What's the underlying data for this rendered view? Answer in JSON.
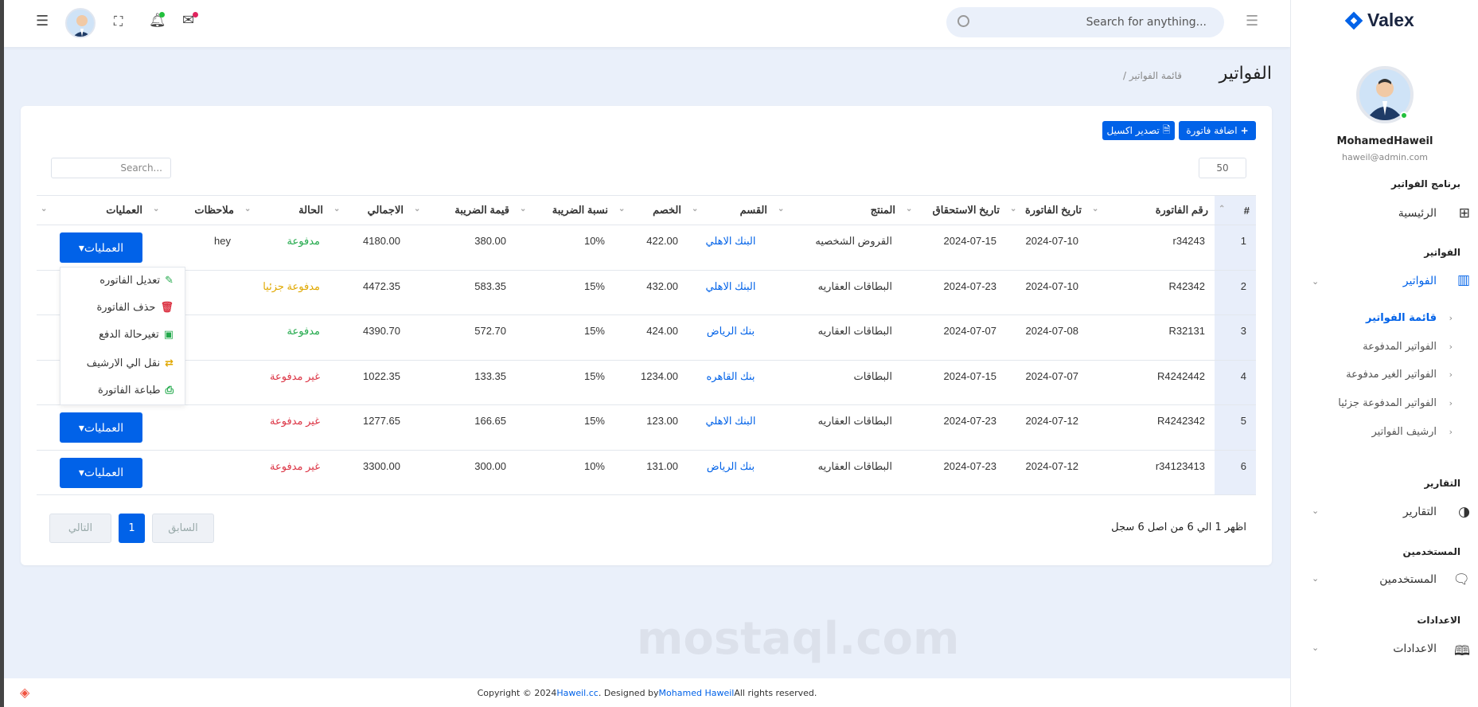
{
  "header": {
    "search_placeholder": "Search for anything...",
    "icons": [
      "menu-icon",
      "avatar",
      "fullscreen-icon",
      "bell-icon",
      "mail-icon",
      "hamburger-icon"
    ]
  },
  "page": {
    "title": "الفواتير",
    "breadcrumb": "/ قائمة الفواتير"
  },
  "toolbar": {
    "add_label": "اضافة فاتورة",
    "export_label": "تصدير اكسيل",
    "page_size": "50",
    "search_placeholder": "Search..."
  },
  "table": {
    "columns": [
      "#",
      "رقم الفاتورة",
      "تاريخ الفاتورة",
      "تاريخ الاستحقاق",
      "المنتج",
      "القسم",
      "الخصم",
      "نسبة الضريبة",
      "قيمة الضريبة",
      "الاجمالي",
      "الحالة",
      "ملاحظات",
      "العمليات"
    ],
    "ops_label": "العمليات▾",
    "rows": [
      {
        "n": "1",
        "no": "r34243",
        "date": "2024-07-10",
        "due": "2024-07-15",
        "product": "القروض الشخصيه",
        "section": "البنك الاهلي",
        "discount": "422.00",
        "rate": "10%",
        "tax": "380.00",
        "total": "4180.00",
        "status": "مدفوعة",
        "status_color": "#22a94b",
        "notes": "hey"
      },
      {
        "n": "2",
        "no": "R42342",
        "date": "2024-07-10",
        "due": "2024-07-23",
        "product": "البطاقات العقاريه",
        "section": "البنك الاهلي",
        "discount": "432.00",
        "rate": "15%",
        "tax": "583.35",
        "total": "4472.35",
        "status": "مدفوعة جزئيا",
        "status_color": "#e0a800",
        "notes": ""
      },
      {
        "n": "3",
        "no": "R32131",
        "date": "2024-07-08",
        "due": "2024-07-07",
        "product": "البطاقات العقاريه",
        "section": "بنك الرياض",
        "discount": "424.00",
        "rate": "15%",
        "tax": "572.70",
        "total": "4390.70",
        "status": "مدفوعة",
        "status_color": "#22a94b",
        "notes": ""
      },
      {
        "n": "4",
        "no": "R4242442",
        "date": "2024-07-07",
        "due": "2024-07-15",
        "product": "البطاقات",
        "section": "بنك القاهره",
        "discount": "1234.00",
        "rate": "15%",
        "tax": "133.35",
        "total": "1022.35",
        "status": "غير مدفوعة",
        "status_color": "#dc3545",
        "notes": ""
      },
      {
        "n": "5",
        "no": "R4242342",
        "date": "2024-07-12",
        "due": "2024-07-23",
        "product": "البطاقات العقاريه",
        "section": "البنك الاهلي",
        "discount": "123.00",
        "rate": "15%",
        "tax": "166.65",
        "total": "1277.65",
        "status": "غير مدفوعة",
        "status_color": "#dc3545",
        "notes": ""
      },
      {
        "n": "6",
        "no": "r34123413",
        "date": "2024-07-12",
        "due": "2024-07-23",
        "product": "البطاقات العقاريه",
        "section": "بنك الرياض",
        "discount": "131.00",
        "rate": "10%",
        "tax": "300.00",
        "total": "3300.00",
        "status": "غير مدفوعة",
        "status_color": "#dc3545",
        "notes": ""
      }
    ]
  },
  "dropdown": [
    {
      "label": "تعديل الفاتوره",
      "icon": "edit-icon",
      "color": "#22a94b"
    },
    {
      "label": "حذف الفاتورة",
      "icon": "trash-icon",
      "color": "#dc3545"
    },
    {
      "label": "تغيرحالة الدفع",
      "icon": "money-icon",
      "color": "#22a94b"
    },
    {
      "label": "نقل الي الارشيف",
      "icon": "exchange-icon",
      "color": "#e0a800"
    },
    {
      "label": "طباعة الفاتورة",
      "icon": "print-icon",
      "color": "#22a94b"
    }
  ],
  "pagination": {
    "info": "اظهر 1 الي 6 من اصل 6 سجل",
    "prev": "السابق",
    "current": "1",
    "next": "التالي"
  },
  "sidebar": {
    "brand": "Valex",
    "user_name": "MohamedHaweil",
    "user_email": "haweil@admin.com",
    "sections": {
      "program": "برنامج الفواتير",
      "invoices": "الفواتير",
      "reports": "التقارير",
      "users": "المستخدمين",
      "settings": "الاعدادات"
    },
    "items": {
      "home": "الرئيسية",
      "invoices": "الفواتير",
      "reports": "التقارير",
      "users": "المستخدمين",
      "settings": "الاعدادات"
    },
    "sub": [
      "قائمة الفواتير",
      "الفواتير المدفوعة",
      "الفواتير الغير مدفوعة",
      "الفواتير المدفوعة جزئيا",
      "ارشيف الفواتير"
    ]
  },
  "footer": {
    "pre": "Copyright © 2024 ",
    "site": "Haweil.cc",
    "mid": ". Designed by ",
    "author": "Mohamed Haweil",
    "post": " All rights reserved."
  },
  "watermark": "mostaql.com",
  "colors": {
    "primary": "#0162e8",
    "paid": "#22a94b",
    "partial": "#e0a800",
    "unpaid": "#dc3545"
  }
}
